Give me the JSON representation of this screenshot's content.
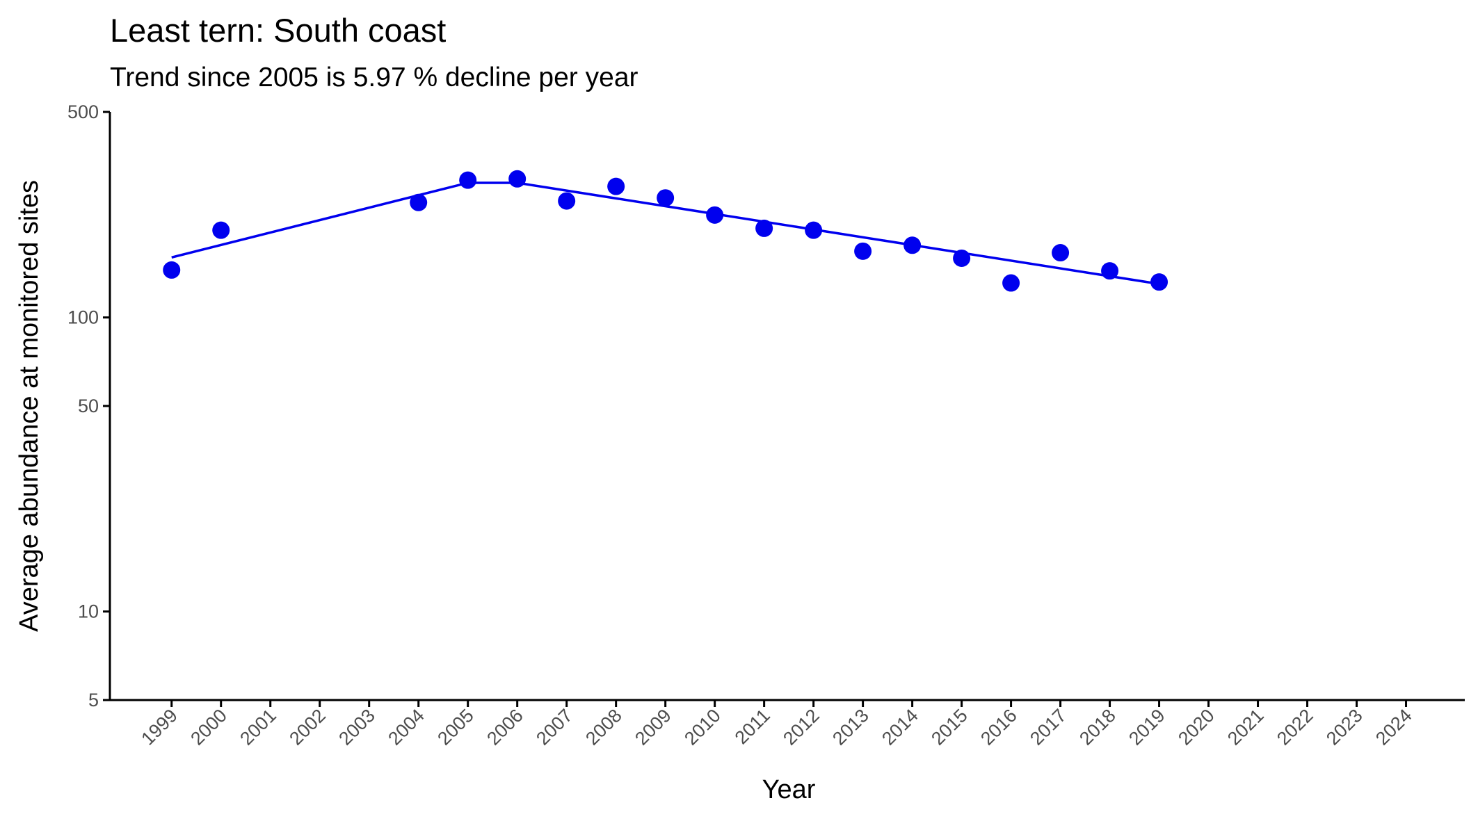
{
  "chart_data": {
    "type": "scatter",
    "title": "Least tern: South coast",
    "subtitle": "Trend since 2005 is 5.97 % decline per year",
    "xlabel": "Year",
    "ylabel": "Average abundance at monitored sites",
    "log_y": true,
    "grid": false,
    "points": {
      "color": "#0000ee",
      "x": [
        1999,
        2000,
        2004,
        2005,
        2006,
        2007,
        2008,
        2009,
        2010,
        2011,
        2012,
        2013,
        2014,
        2015,
        2016,
        2017,
        2018,
        2019
      ],
      "values": [
        145,
        198,
        246,
        293,
        296,
        249,
        279,
        255,
        223,
        201,
        198,
        168,
        176,
        159,
        131,
        166,
        144,
        132
      ]
    },
    "trend": {
      "color": "#0000ee",
      "x": [
        1999,
        2005,
        2006,
        2019
      ],
      "values": [
        160,
        287,
        287,
        130
      ]
    },
    "xlim": [
      1997.75,
      2025.19
    ],
    "xticks": [
      1999,
      2000,
      2001,
      2002,
      2003,
      2004,
      2005,
      2006,
      2007,
      2008,
      2009,
      2010,
      2011,
      2012,
      2013,
      2014,
      2015,
      2016,
      2017,
      2018,
      2019,
      2020,
      2021,
      2022,
      2023,
      2024
    ],
    "ylim": [
      5,
      500
    ],
    "yticks": [
      5,
      10,
      50,
      100,
      500
    ]
  }
}
